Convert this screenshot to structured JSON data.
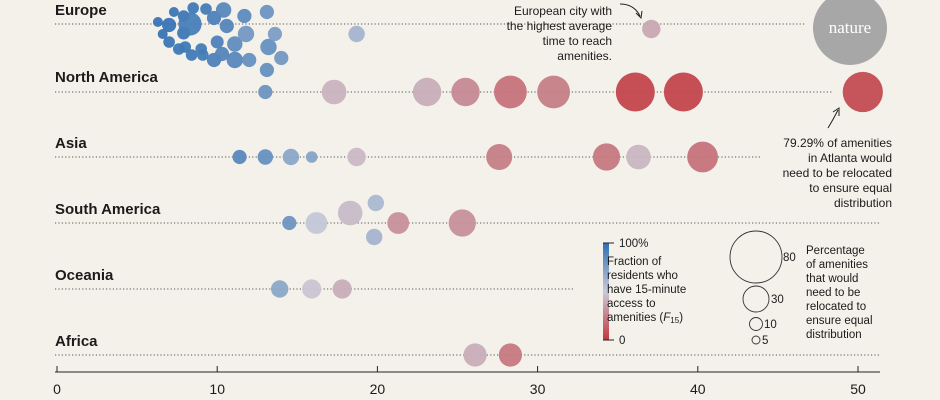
{
  "brand": {
    "logo_text": "nature",
    "logo_color": "#a7a7a7"
  },
  "chart_data": {
    "type": "scatter",
    "title": "",
    "xlabel": "",
    "ylabel": "",
    "xlim": [
      0,
      51
    ],
    "x_ticks": [
      0,
      10,
      20,
      30,
      40,
      50
    ],
    "regions": [
      "Europe",
      "North America",
      "Asia",
      "South America",
      "Oceania",
      "Africa"
    ],
    "color_encoding": {
      "label_lines": [
        "Fraction of",
        "residents who",
        "have 15-minute",
        "access to"
      ],
      "label_last": "amenities (",
      "label_var": "F",
      "label_sub": "15",
      "label_close": ")",
      "max_label": "100%",
      "min_label": "0",
      "colors": [
        "#2f6fb2",
        "#c9cad8",
        "#c2373d"
      ]
    },
    "size_encoding": {
      "label_lines": [
        "Percentage",
        "of amenities",
        "that would",
        "need to be",
        "relocated to",
        "ensure equal",
        "distribution"
      ],
      "sizes": [
        80,
        30,
        10,
        5
      ]
    },
    "annotations": {
      "europe_note": [
        "European city with",
        "the highest average",
        "time to reach",
        "amenities."
      ],
      "atlanta_note": [
        "79.29% of amenities",
        "in Atlanta would",
        "need to be relocated",
        "to ensure equal",
        "distribution"
      ]
    },
    "points": [
      {
        "region": "Europe",
        "x": 6.3,
        "dy": -2,
        "size": 3,
        "f15": 0.97
      },
      {
        "region": "Europe",
        "x": 6.6,
        "dy": 10,
        "size": 3,
        "f15": 0.97
      },
      {
        "region": "Europe",
        "x": 7.0,
        "dy": 1,
        "size": 6,
        "f15": 0.97
      },
      {
        "region": "Europe",
        "x": 7.0,
        "dy": 18,
        "size": 4,
        "f15": 0.96
      },
      {
        "region": "Europe",
        "x": 7.3,
        "dy": -12,
        "size": 3,
        "f15": 0.96
      },
      {
        "region": "Europe",
        "x": 7.6,
        "dy": 25,
        "size": 4,
        "f15": 0.95
      },
      {
        "region": "Europe",
        "x": 7.9,
        "dy": -8,
        "size": 4,
        "f15": 0.95
      },
      {
        "region": "Europe",
        "x": 7.9,
        "dy": 9,
        "size": 5,
        "f15": 0.95
      },
      {
        "region": "Europe",
        "x": 8.0,
        "dy": 23,
        "size": 4,
        "f15": 0.95
      },
      {
        "region": "Europe",
        "x": 8.4,
        "dy": 31,
        "size": 4,
        "f15": 0.94
      },
      {
        "region": "Europe",
        "x": 8.5,
        "dy": -16,
        "size": 4,
        "f15": 0.94
      },
      {
        "region": "Europe",
        "x": 8.3,
        "dy": 0,
        "size": 16,
        "f15": 0.92
      },
      {
        "region": "Europe",
        "x": 9.0,
        "dy": 25,
        "size": 4,
        "f15": 0.93
      },
      {
        "region": "Europe",
        "x": 9.1,
        "dy": 31,
        "size": 4,
        "f15": 0.93
      },
      {
        "region": "Europe",
        "x": 9.3,
        "dy": -15,
        "size": 4,
        "f15": 0.93
      },
      {
        "region": "Europe",
        "x": 9.8,
        "dy": 36,
        "size": 6,
        "f15": 0.9
      },
      {
        "region": "Europe",
        "x": 9.8,
        "dy": -6,
        "size": 6,
        "f15": 0.9
      },
      {
        "region": "Europe",
        "x": 10.0,
        "dy": 18,
        "size": 5,
        "f15": 0.9
      },
      {
        "region": "Europe",
        "x": 10.3,
        "dy": 30,
        "size": 6,
        "f15": 0.88
      },
      {
        "region": "Europe",
        "x": 10.6,
        "dy": 2,
        "size": 6,
        "f15": 0.88
      },
      {
        "region": "Europe",
        "x": 10.4,
        "dy": -14,
        "size": 7,
        "f15": 0.86
      },
      {
        "region": "Europe",
        "x": 11.1,
        "dy": 36,
        "size": 8,
        "f15": 0.86
      },
      {
        "region": "Europe",
        "x": 11.1,
        "dy": 20,
        "size": 7,
        "f15": 0.84
      },
      {
        "region": "Europe",
        "x": 11.7,
        "dy": -8,
        "size": 6,
        "f15": 0.85
      },
      {
        "region": "Europe",
        "x": 11.8,
        "dy": 10,
        "size": 8,
        "f15": 0.78
      },
      {
        "region": "Europe",
        "x": 12.0,
        "dy": 36,
        "size": 6,
        "f15": 0.82
      },
      {
        "region": "Europe",
        "x": 13.2,
        "dy": 23,
        "size": 8,
        "f15": 0.82
      },
      {
        "region": "Europe",
        "x": 13.1,
        "dy": -12,
        "size": 6,
        "f15": 0.8
      },
      {
        "region": "Europe",
        "x": 13.1,
        "dy": 46,
        "size": 6,
        "f15": 0.82
      },
      {
        "region": "Europe",
        "x": 13.6,
        "dy": 10,
        "size": 6,
        "f15": 0.75
      },
      {
        "region": "Europe",
        "x": 14.0,
        "dy": 34,
        "size": 6,
        "f15": 0.78
      },
      {
        "region": "Europe",
        "x": 18.7,
        "dy": 10,
        "size": 8,
        "f15": 0.62
      },
      {
        "region": "Europe",
        "x": 37.1,
        "dy": 5,
        "size": 10,
        "f15": 0.38
      },
      {
        "region": "North America",
        "x": 13.0,
        "dy": 0,
        "size": 6,
        "f15": 0.8
      },
      {
        "region": "North America",
        "x": 17.3,
        "dy": 0,
        "size": 18,
        "f15": 0.42
      },
      {
        "region": "North America",
        "x": 23.1,
        "dy": 0,
        "size": 24,
        "f15": 0.4
      },
      {
        "region": "North America",
        "x": 25.5,
        "dy": 0,
        "size": 24,
        "f15": 0.28
      },
      {
        "region": "North America",
        "x": 28.3,
        "dy": 0,
        "size": 32,
        "f15": 0.2
      },
      {
        "region": "North America",
        "x": 31.0,
        "dy": 0,
        "size": 32,
        "f15": 0.24
      },
      {
        "region": "North America",
        "x": 36.1,
        "dy": 0,
        "size": 45,
        "f15": 0.05
      },
      {
        "region": "North America",
        "x": 39.1,
        "dy": 0,
        "size": 45,
        "f15": 0.05
      },
      {
        "region": "North America",
        "x": 50.3,
        "dy": 0,
        "size": 48,
        "f15": 0.07
      },
      {
        "region": "Asia",
        "x": 11.4,
        "dy": 0,
        "size": 6,
        "f15": 0.86
      },
      {
        "region": "Asia",
        "x": 13.0,
        "dy": 0,
        "size": 7,
        "f15": 0.82
      },
      {
        "region": "Asia",
        "x": 14.6,
        "dy": 0,
        "size": 8,
        "f15": 0.7
      },
      {
        "region": "Asia",
        "x": 15.9,
        "dy": 0,
        "size": 4,
        "f15": 0.72
      },
      {
        "region": "Asia",
        "x": 18.7,
        "dy": 0,
        "size": 10,
        "f15": 0.44
      },
      {
        "region": "Asia",
        "x": 27.6,
        "dy": 0,
        "size": 20,
        "f15": 0.24
      },
      {
        "region": "Asia",
        "x": 34.3,
        "dy": 0,
        "size": 22,
        "f15": 0.22
      },
      {
        "region": "Asia",
        "x": 36.3,
        "dy": 0,
        "size": 18,
        "f15": 0.43
      },
      {
        "region": "Asia",
        "x": 40.3,
        "dy": 0,
        "size": 28,
        "f15": 0.2
      },
      {
        "region": "South America",
        "x": 14.5,
        "dy": 0,
        "size": 6,
        "f15": 0.8
      },
      {
        "region": "South America",
        "x": 16.2,
        "dy": 0,
        "size": 14,
        "f15": 0.52
      },
      {
        "region": "South America",
        "x": 18.3,
        "dy": -10,
        "size": 18,
        "f15": 0.45
      },
      {
        "region": "South America",
        "x": 19.9,
        "dy": -20,
        "size": 8,
        "f15": 0.6
      },
      {
        "region": "South America",
        "x": 19.8,
        "dy": 14,
        "size": 8,
        "f15": 0.62
      },
      {
        "region": "South America",
        "x": 21.3,
        "dy": 0,
        "size": 14,
        "f15": 0.3
      },
      {
        "region": "South America",
        "x": 25.3,
        "dy": 0,
        "size": 22,
        "f15": 0.3
      },
      {
        "region": "Oceania",
        "x": 13.9,
        "dy": 0,
        "size": 9,
        "f15": 0.7
      },
      {
        "region": "Oceania",
        "x": 15.9,
        "dy": 0,
        "size": 11,
        "f15": 0.48
      },
      {
        "region": "Oceania",
        "x": 17.8,
        "dy": 0,
        "size": 11,
        "f15": 0.4
      },
      {
        "region": "Africa",
        "x": 26.1,
        "dy": 0,
        "size": 16,
        "f15": 0.4
      },
      {
        "region": "Africa",
        "x": 28.3,
        "dy": 0,
        "size": 16,
        "f15": 0.22
      }
    ]
  }
}
